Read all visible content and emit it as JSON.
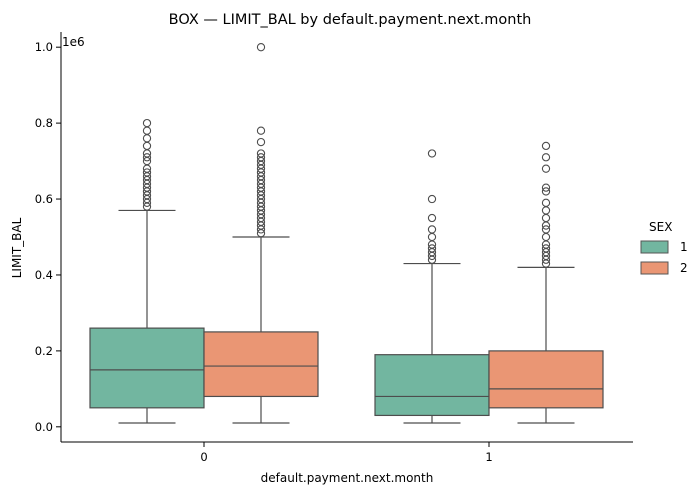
{
  "chart_data": {
    "type": "box",
    "title": "BOX — LIMIT_BAL by default.payment.next.month",
    "xlabel": "default.payment.next.month",
    "ylabel": "LIMIT_BAL",
    "y_scale_note": "1e6",
    "categories": [
      "0",
      "1"
    ],
    "ylim": [
      -0.04,
      1.04
    ],
    "yticks": [
      "0.0",
      "0.2",
      "0.4",
      "0.6",
      "0.8",
      "1.0"
    ],
    "yticks_values": [
      0,
      0.2,
      0.4,
      0.6,
      0.8,
      1.0
    ],
    "legend": {
      "title": "SEX",
      "placement": "right"
    },
    "series": [
      {
        "name": "1",
        "color": "#72b6a0",
        "boxes": [
          {
            "category": "0",
            "whisker_low": 0.01,
            "q1": 0.05,
            "median": 0.15,
            "q3": 0.26,
            "whisker_high": 0.57,
            "outliers": [
              0.58,
              0.59,
              0.6,
              0.61,
              0.62,
              0.63,
              0.64,
              0.65,
              0.66,
              0.67,
              0.68,
              0.7,
              0.71,
              0.72,
              0.74,
              0.76,
              0.78,
              0.8
            ]
          },
          {
            "category": "1",
            "whisker_low": 0.01,
            "q1": 0.03,
            "median": 0.08,
            "q3": 0.19,
            "whisker_high": 0.43,
            "outliers": [
              0.44,
              0.45,
              0.46,
              0.47,
              0.48,
              0.5,
              0.52,
              0.55,
              0.6,
              0.72
            ]
          }
        ]
      },
      {
        "name": "2",
        "color": "#ea9674",
        "boxes": [
          {
            "category": "0",
            "whisker_low": 0.01,
            "q1": 0.08,
            "median": 0.16,
            "q3": 0.25,
            "whisker_high": 0.5,
            "outliers": [
              0.51,
              0.52,
              0.53,
              0.54,
              0.55,
              0.56,
              0.57,
              0.58,
              0.59,
              0.6,
              0.61,
              0.62,
              0.63,
              0.64,
              0.65,
              0.66,
              0.67,
              0.68,
              0.69,
              0.7,
              0.71,
              0.72,
              0.75,
              0.78,
              1.0
            ]
          },
          {
            "category": "1",
            "whisker_low": 0.01,
            "q1": 0.05,
            "median": 0.1,
            "q3": 0.2,
            "whisker_high": 0.42,
            "outliers": [
              0.43,
              0.44,
              0.45,
              0.46,
              0.47,
              0.48,
              0.5,
              0.52,
              0.53,
              0.55,
              0.57,
              0.59,
              0.62,
              0.63,
              0.68,
              0.71,
              0.74
            ]
          }
        ]
      }
    ]
  }
}
